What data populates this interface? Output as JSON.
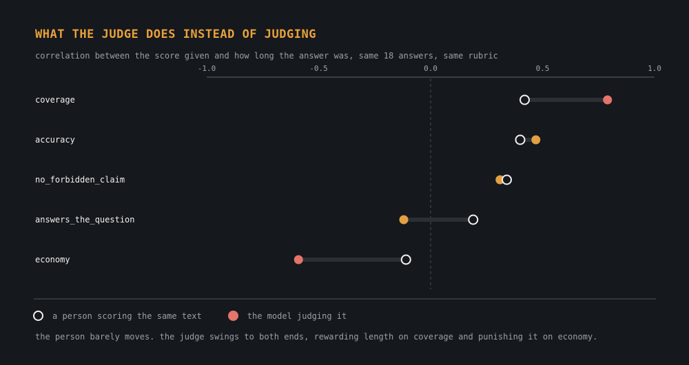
{
  "header": {
    "title": "WHAT THE JUDGE DOES INSTEAD OF JUDGING",
    "subtitle": "correlation between the score given and how long the answer was, same 18 answers, same rubric"
  },
  "legend": {
    "human_label": "a person scoring the same text",
    "model_label": "the model judging it"
  },
  "footnote": "the person barely moves. the judge swings to both ends, rewarding length on coverage and punishing it on economy.",
  "colors": {
    "background": "#15181c",
    "title": "#e9a13b",
    "human_marker": "#f2f2f2",
    "model_positive_strong": "#e5746a",
    "model_moderate": "#e3a043",
    "connector": "#2c3035"
  },
  "chart_data": {
    "type": "dumbbell",
    "xlim": [
      -1.0,
      1.0
    ],
    "ticks": [
      "-1.0",
      "-0.5",
      "0.0",
      "0.5",
      "1.0"
    ],
    "tick_values": [
      -1.0,
      -0.5,
      0.0,
      0.5,
      1.0
    ],
    "rows": [
      {
        "label": "coverage",
        "person": 0.42,
        "model": 0.79,
        "model_color": "#e5746a"
      },
      {
        "label": "accuracy",
        "person": 0.4,
        "model": 0.47,
        "model_color": "#e3a043"
      },
      {
        "label": "no_forbidden_claim",
        "person": 0.34,
        "model": 0.31,
        "model_color": "#e3a043"
      },
      {
        "label": "answers_the_question",
        "person": 0.19,
        "model": -0.12,
        "model_color": "#e3a043"
      },
      {
        "label": "economy",
        "person": -0.11,
        "model": -0.59,
        "model_color": "#e5746a"
      }
    ]
  }
}
